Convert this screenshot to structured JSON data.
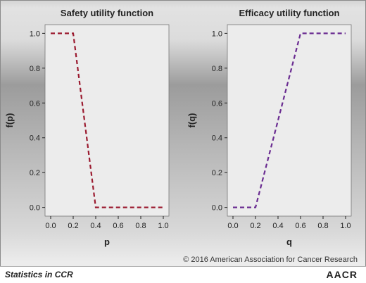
{
  "copyright": "© 2016 American Association for Cancer Research",
  "footer": {
    "series_label": "Statistics in CCR",
    "logo_text": "AACR"
  },
  "colors": {
    "plot_background": "#ececec",
    "safety_line": "#9b1b30",
    "efficacy_line": "#6a2c91",
    "axis": "#222222"
  },
  "chart_data": [
    {
      "type": "line",
      "title": "Safety utility function",
      "xlabel": "p",
      "ylabel": "f(p)",
      "xlim": [
        -0.05,
        1.05
      ],
      "ylim": [
        -0.05,
        1.05
      ],
      "xticks": [
        0.0,
        0.2,
        0.4,
        0.6,
        0.8,
        1.0
      ],
      "xtick_labels": [
        "0.0",
        "0.2",
        "0.4",
        "0.6",
        "0.8",
        "1.0"
      ],
      "yticks": [
        0.0,
        0.2,
        0.4,
        0.6,
        0.8,
        1.0
      ],
      "ytick_labels": [
        "0.0",
        "0.2",
        "0.4",
        "0.6",
        "0.8",
        "1.0"
      ],
      "line_style": "dashed",
      "series": [
        {
          "x": [
            0.0,
            0.2,
            0.4,
            1.0
          ],
          "y": [
            1.0,
            1.0,
            0.0,
            0.0
          ],
          "color": "#9b1b30"
        }
      ]
    },
    {
      "type": "line",
      "title": "Efficacy utility function",
      "xlabel": "q",
      "ylabel": "f(q)",
      "xlim": [
        -0.05,
        1.05
      ],
      "ylim": [
        -0.05,
        1.05
      ],
      "xticks": [
        0.0,
        0.2,
        0.4,
        0.6,
        0.8,
        1.0
      ],
      "xtick_labels": [
        "0.0",
        "0.2",
        "0.4",
        "0.6",
        "0.8",
        "1.0"
      ],
      "yticks": [
        0.0,
        0.2,
        0.4,
        0.6,
        0.8,
        1.0
      ],
      "ytick_labels": [
        "0.0",
        "0.2",
        "0.4",
        "0.6",
        "0.8",
        "1.0"
      ],
      "line_style": "dashed",
      "series": [
        {
          "x": [
            0.0,
            0.2,
            0.6,
            1.0
          ],
          "y": [
            0.0,
            0.0,
            1.0,
            1.0
          ],
          "color": "#6a2c91"
        }
      ]
    }
  ]
}
